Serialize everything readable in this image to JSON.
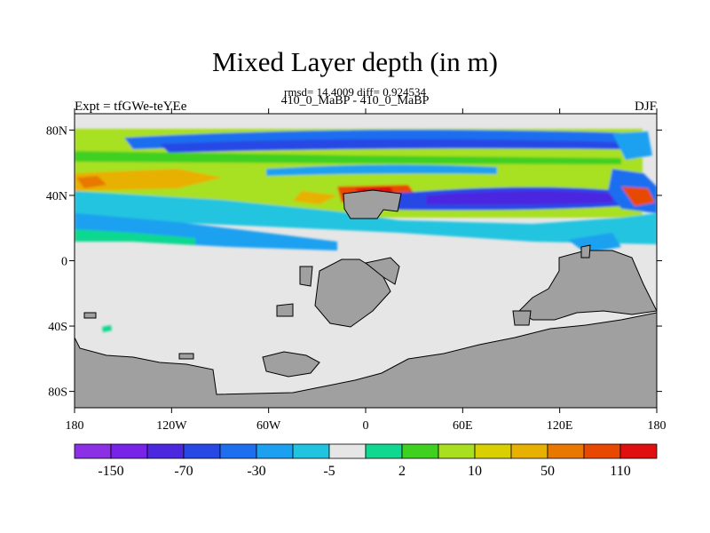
{
  "plot": {
    "title": "Mixed Layer depth (in m)",
    "stats": "rmsd= 14.4009 diff= 0.924534",
    "difference_label": "410_0_MaBP - 410_0_MaBP",
    "experiment": "Expt = tfGWe-teYEe",
    "season": "DJF"
  },
  "map": {
    "lon_ticks": [
      "180",
      "120W",
      "60W",
      "0",
      "60E",
      "120E",
      "180"
    ],
    "lat_ticks": [
      "80N",
      "40N",
      "0",
      "40S",
      "80S"
    ],
    "land_color": "#a0a0a0"
  },
  "colorbar": {
    "colors": [
      "#8c30e6",
      "#7824e8",
      "#4b28e0",
      "#2848e6",
      "#1e6ef0",
      "#1ea0f0",
      "#20c4e0",
      "#e6e6e6",
      "#10d890",
      "#40d020",
      "#a8e020",
      "#d8d000",
      "#e8b000",
      "#e87800",
      "#e84800",
      "#e01010"
    ],
    "tick_labels": [
      "-150",
      "-70",
      "-30",
      "-5",
      "2",
      "10",
      "50",
      "110"
    ]
  }
}
